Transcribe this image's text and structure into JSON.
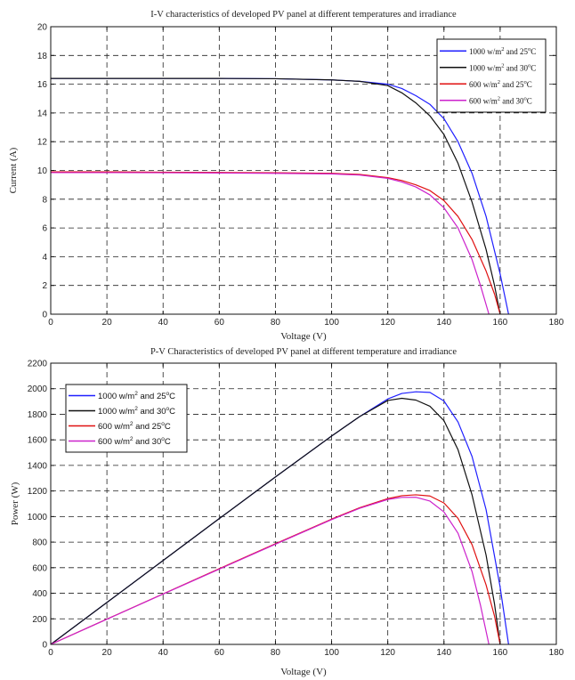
{
  "chart_data": [
    {
      "type": "line",
      "title": "I-V characteristics of developed PV panel at different temperatures and irradiance",
      "xlabel": "Voltage (V)",
      "ylabel": "Current (A)",
      "xlim": [
        0,
        180
      ],
      "ylim": [
        0,
        20
      ],
      "xticks": [
        0,
        20,
        40,
        60,
        80,
        100,
        120,
        140,
        160,
        180
      ],
      "yticks": [
        0,
        2,
        4,
        6,
        8,
        10,
        12,
        14,
        16,
        18,
        20
      ],
      "xtick_labels": [
        "0",
        "20",
        "40",
        "60",
        "80",
        "100",
        "120",
        "140",
        "160",
        "180"
      ],
      "ytick_labels": [
        "0",
        "2",
        "4",
        "6",
        "8",
        "10",
        "12",
        "14",
        "16",
        "18",
        "20"
      ],
      "grid": true,
      "legend_position": "top-right",
      "series": [
        {
          "name": "1000 w/m2 and 25°C",
          "legend_main": "1000 w/m",
          "legend_sup1": "2",
          "legend_mid": " and 25",
          "legend_sup2": "o",
          "legend_end": "C",
          "color": "#1f1fff",
          "x": [
            0,
            20,
            40,
            60,
            80,
            100,
            110,
            120,
            125,
            130,
            135,
            140,
            145,
            150,
            155,
            160,
            163
          ],
          "y": [
            16.4,
            16.4,
            16.4,
            16.4,
            16.38,
            16.3,
            16.2,
            16.0,
            15.7,
            15.2,
            14.6,
            13.6,
            12.0,
            9.8,
            6.8,
            2.8,
            0
          ]
        },
        {
          "name": "1000 w/m2 and 30°C",
          "legend_main": "1000 w/m",
          "legend_sup1": "2",
          "legend_mid": " and 30",
          "legend_sup2": "o",
          "legend_end": "C",
          "color": "#111111",
          "x": [
            0,
            20,
            40,
            60,
            80,
            100,
            110,
            120,
            125,
            130,
            135,
            140,
            145,
            150,
            155,
            158,
            160
          ],
          "y": [
            16.4,
            16.4,
            16.4,
            16.4,
            16.38,
            16.3,
            16.2,
            15.9,
            15.4,
            14.7,
            13.8,
            12.5,
            10.5,
            7.8,
            4.5,
            2.0,
            0
          ]
        },
        {
          "name": "600 w/m2 and 25°C",
          "legend_main": "600 w/m",
          "legend_sup1": "2",
          "legend_mid": " and 25",
          "legend_sup2": "o",
          "legend_end": "C",
          "color": "#e01010",
          "x": [
            0,
            20,
            40,
            60,
            80,
            100,
            110,
            120,
            125,
            130,
            135,
            140,
            145,
            150,
            155,
            158,
            160
          ],
          "y": [
            9.9,
            9.9,
            9.88,
            9.86,
            9.84,
            9.8,
            9.72,
            9.5,
            9.3,
            9.0,
            8.6,
            7.9,
            6.8,
            5.2,
            3.0,
            1.4,
            0
          ]
        },
        {
          "name": "600 w/m2 and 30°C",
          "legend_main": "600 w/m",
          "legend_sup1": "2",
          "legend_mid": " and 30",
          "legend_sup2": "o",
          "legend_end": "C",
          "color": "#cc22cc",
          "x": [
            0,
            20,
            40,
            60,
            80,
            100,
            110,
            120,
            125,
            130,
            135,
            140,
            145,
            150,
            153,
            156
          ],
          "y": [
            9.85,
            9.85,
            9.84,
            9.82,
            9.8,
            9.76,
            9.68,
            9.45,
            9.2,
            8.85,
            8.3,
            7.4,
            6.0,
            3.8,
            2.0,
            0
          ]
        }
      ]
    },
    {
      "type": "line",
      "title": "P-V Characteristics of developed PV panel at different temperature and irradiance",
      "xlabel": "Voltage (V)",
      "ylabel": "Power (W)",
      "xlim": [
        0,
        180
      ],
      "ylim": [
        0,
        2200
      ],
      "xticks": [
        0,
        20,
        40,
        60,
        80,
        100,
        120,
        140,
        160,
        180
      ],
      "yticks": [
        0,
        200,
        400,
        600,
        800,
        1000,
        1200,
        1400,
        1600,
        1800,
        2000,
        2200
      ],
      "xtick_labels": [
        "0",
        "20",
        "40",
        "60",
        "80",
        "100",
        "120",
        "140",
        "160",
        "180"
      ],
      "ytick_labels": [
        "0",
        "200",
        "400",
        "600",
        "800",
        "1000",
        "1200",
        "1400",
        "1600",
        "1800",
        "2000",
        "2200"
      ],
      "grid": true,
      "legend_position": "top-left",
      "series": [
        {
          "name": "1000 w/m2 and 25°C",
          "legend_main": "1000 w/m",
          "legend_sup1": "2",
          "legend_mid": " and 25",
          "legend_sup2": "o",
          "legend_end": "C",
          "color": "#1f1fff",
          "x": [
            0,
            20,
            40,
            60,
            80,
            100,
            110,
            120,
            125,
            130,
            135,
            140,
            145,
            150,
            155,
            160,
            163
          ],
          "y": [
            0,
            328,
            656,
            984,
            1310,
            1630,
            1782,
            1920,
            1963,
            1976,
            1971,
            1904,
            1740,
            1470,
            1054,
            448,
            0
          ]
        },
        {
          "name": "1000 w/m2 and 30°C",
          "legend_main": "1000 w/m",
          "legend_sup1": "2",
          "legend_mid": " and 30",
          "legend_sup2": "o",
          "legend_end": "C",
          "color": "#111111",
          "x": [
            0,
            20,
            40,
            60,
            80,
            100,
            110,
            120,
            125,
            130,
            135,
            140,
            145,
            150,
            155,
            158,
            160
          ],
          "y": [
            0,
            328,
            656,
            984,
            1310,
            1630,
            1782,
            1908,
            1925,
            1911,
            1863,
            1750,
            1523,
            1170,
            698,
            316,
            0
          ]
        },
        {
          "name": "600 w/m2 and 25°C",
          "legend_main": "600 w/m",
          "legend_sup1": "2",
          "legend_mid": " and 25",
          "legend_sup2": "o",
          "legend_end": "C",
          "color": "#e01010",
          "x": [
            0,
            20,
            40,
            60,
            80,
            100,
            110,
            120,
            125,
            130,
            135,
            140,
            145,
            150,
            155,
            158,
            160
          ],
          "y": [
            0,
            198,
            395,
            592,
            787,
            980,
            1069,
            1140,
            1163,
            1170,
            1161,
            1106,
            986,
            780,
            465,
            221,
            0
          ]
        },
        {
          "name": "600 w/m2 and 30°C",
          "legend_main": "600 w/m",
          "legend_sup1": "2",
          "legend_mid": " and 30",
          "legend_sup2": "o",
          "legend_end": "C",
          "color": "#cc22cc",
          "x": [
            0,
            20,
            40,
            60,
            80,
            100,
            110,
            120,
            125,
            130,
            135,
            140,
            145,
            150,
            153,
            156
          ],
          "y": [
            0,
            197,
            394,
            589,
            784,
            976,
            1065,
            1134,
            1150,
            1151,
            1121,
            1036,
            870,
            570,
            306,
            0
          ]
        }
      ]
    }
  ]
}
